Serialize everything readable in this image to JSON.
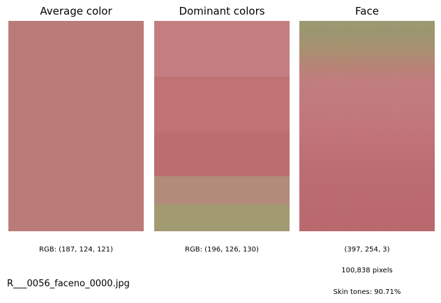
{
  "panels": {
    "average": {
      "title": "Average color",
      "swatch_color": "#bb7c79",
      "caption": "RGB: (187, 124, 121)"
    },
    "dominant": {
      "title": "Dominant colors",
      "caption": "RGB: (196, 126, 130)",
      "bands": [
        {
          "color": "#c47e82",
          "share": 0.265
        },
        {
          "color": "#c07275",
          "share": 0.265
        },
        {
          "color": "#bc6d6f",
          "share": 0.21
        },
        {
          "color": "#b28b7b",
          "share": 0.13
        },
        {
          "color": "#a29a70",
          "share": 0.13
        }
      ]
    },
    "face": {
      "title": "Face",
      "shape": "(397, 254, 3)",
      "pixels": "100,838 pixels",
      "skin_tones": "Skin tones: 90.71%"
    }
  },
  "filename": "R___0056_faceno_0000.jpg"
}
